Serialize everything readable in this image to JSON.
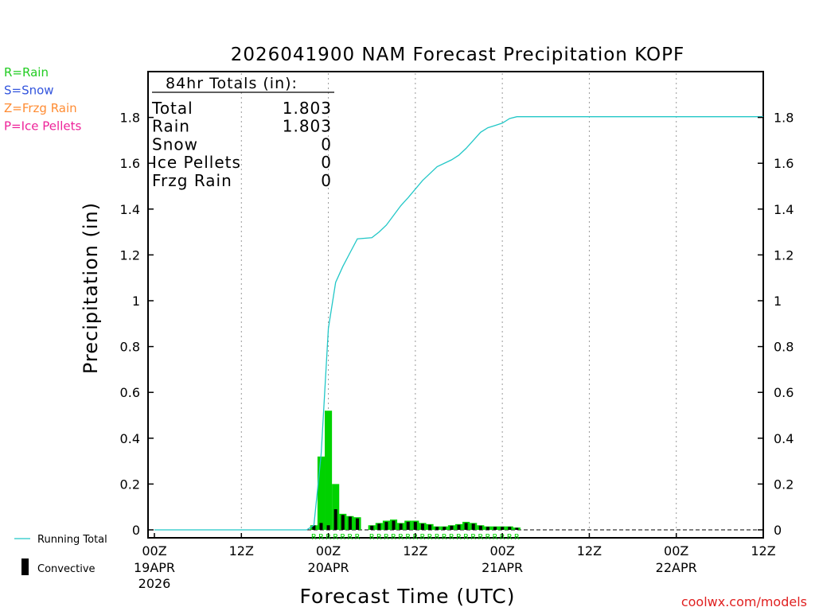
{
  "chart_data": {
    "type": "bar",
    "title": "2026041900 NAM Forecast Precipitation KOPF",
    "xlabel": "Forecast Time (UTC)",
    "ylabel": "Precipitation (in)",
    "ylim": [
      0,
      2.0
    ],
    "xlim_hours": [
      0,
      84
    ],
    "yticks": [
      "0",
      "0.2",
      "0.4",
      "0.6",
      "0.8",
      "1",
      "1.2",
      "1.4",
      "1.6",
      "1.8"
    ],
    "xticks": [
      {
        "hour": 0,
        "label": "00Z",
        "date": "19APR",
        "year": "2026"
      },
      {
        "hour": 12,
        "label": "12Z",
        "date": "",
        "year": ""
      },
      {
        "hour": 24,
        "label": "00Z",
        "date": "20APR",
        "year": ""
      },
      {
        "hour": 36,
        "label": "12Z",
        "date": "",
        "year": ""
      },
      {
        "hour": 48,
        "label": "00Z",
        "date": "21APR",
        "year": ""
      },
      {
        "hour": 60,
        "label": "12Z",
        "date": "",
        "year": ""
      },
      {
        "hour": 72,
        "label": "00Z",
        "date": "22APR",
        "year": ""
      },
      {
        "hour": 84,
        "label": "12Z",
        "date": "",
        "year": ""
      }
    ],
    "legend_ptypes": [
      {
        "label": "R=Rain",
        "color": "#22cc22"
      },
      {
        "label": "S=Snow",
        "color": "#3355dd"
      },
      {
        "label": "Z=Frzg Rain",
        "color": "#ff8c33"
      },
      {
        "label": "P=Ice Pellets",
        "color": "#ee2299"
      }
    ],
    "legend_series": {
      "running_total": "Running Total",
      "convective": "Convective"
    },
    "totals_box": {
      "title": "84hr Totals (in):",
      "rows": [
        {
          "label": "Total",
          "value": "1.803"
        },
        {
          "label": "Rain",
          "value": "1.803"
        },
        {
          "label": "Snow",
          "value": "0"
        },
        {
          "label": "Ice Pellets",
          "value": "0"
        },
        {
          "label": "Frzg Rain",
          "value": "0"
        }
      ]
    },
    "hourly_bars": [
      {
        "hour": 22,
        "total": 0.02,
        "convective": 0.02,
        "ptype": "R"
      },
      {
        "hour": 23,
        "total": 0.32,
        "convective": 0.03,
        "ptype": "R"
      },
      {
        "hour": 24,
        "total": 0.52,
        "convective": 0.02,
        "ptype": "R"
      },
      {
        "hour": 25,
        "total": 0.2,
        "convective": 0.09,
        "ptype": "R"
      },
      {
        "hour": 26,
        "total": 0.07,
        "convective": 0.065,
        "ptype": "R"
      },
      {
        "hour": 27,
        "total": 0.06,
        "convective": 0.058,
        "ptype": "R"
      },
      {
        "hour": 28,
        "total": 0.055,
        "convective": 0.05,
        "ptype": "R"
      },
      {
        "hour": 29,
        "total": 0.0,
        "convective": 0.0,
        "ptype": ""
      },
      {
        "hour": 30,
        "total": 0.02,
        "convective": 0.018,
        "ptype": "R"
      },
      {
        "hour": 31,
        "total": 0.03,
        "convective": 0.027,
        "ptype": "R"
      },
      {
        "hour": 32,
        "total": 0.04,
        "convective": 0.035,
        "ptype": "R"
      },
      {
        "hour": 33,
        "total": 0.045,
        "convective": 0.04,
        "ptype": "R"
      },
      {
        "hour": 34,
        "total": 0.03,
        "convective": 0.027,
        "ptype": "R"
      },
      {
        "hour": 35,
        "total": 0.04,
        "convective": 0.035,
        "ptype": "R"
      },
      {
        "hour": 36,
        "total": 0.04,
        "convective": 0.035,
        "ptype": "R"
      },
      {
        "hour": 37,
        "total": 0.03,
        "convective": 0.027,
        "ptype": "R"
      },
      {
        "hour": 38,
        "total": 0.025,
        "convective": 0.022,
        "ptype": "R"
      },
      {
        "hour": 39,
        "total": 0.015,
        "convective": 0.013,
        "ptype": "R"
      },
      {
        "hour": 40,
        "total": 0.015,
        "convective": 0.013,
        "ptype": "R"
      },
      {
        "hour": 41,
        "total": 0.02,
        "convective": 0.018,
        "ptype": "R"
      },
      {
        "hour": 42,
        "total": 0.025,
        "convective": 0.022,
        "ptype": "R"
      },
      {
        "hour": 43,
        "total": 0.035,
        "convective": 0.03,
        "ptype": "R"
      },
      {
        "hour": 44,
        "total": 0.03,
        "convective": 0.027,
        "ptype": "R"
      },
      {
        "hour": 45,
        "total": 0.02,
        "convective": 0.018,
        "ptype": "R"
      },
      {
        "hour": 46,
        "total": 0.015,
        "convective": 0.013,
        "ptype": "R"
      },
      {
        "hour": 47,
        "total": 0.015,
        "convective": 0.013,
        "ptype": "R"
      },
      {
        "hour": 48,
        "total": 0.015,
        "convective": 0.013,
        "ptype": "R"
      },
      {
        "hour": 49,
        "total": 0.015,
        "convective": 0.013,
        "ptype": "R"
      },
      {
        "hour": 50,
        "total": 0.01,
        "convective": 0.009,
        "ptype": "R"
      }
    ],
    "running_total": [
      [
        0,
        0
      ],
      [
        21,
        0
      ],
      [
        22,
        0.02
      ],
      [
        23,
        0.33
      ],
      [
        24,
        0.88
      ],
      [
        25,
        1.08
      ],
      [
        26,
        1.15
      ],
      [
        27,
        1.21
      ],
      [
        28,
        1.27
      ],
      [
        30,
        1.275
      ],
      [
        31,
        1.3
      ],
      [
        32,
        1.33
      ],
      [
        34,
        1.415
      ],
      [
        35,
        1.45
      ],
      [
        37,
        1.525
      ],
      [
        38,
        1.555
      ],
      [
        39,
        1.585
      ],
      [
        41,
        1.615
      ],
      [
        42,
        1.635
      ],
      [
        43,
        1.665
      ],
      [
        44,
        1.7
      ],
      [
        45,
        1.735
      ],
      [
        46,
        1.755
      ],
      [
        47,
        1.765
      ],
      [
        48,
        1.775
      ],
      [
        49,
        1.795
      ],
      [
        50,
        1.803
      ],
      [
        84,
        1.803
      ]
    ]
  },
  "colors": {
    "rain_bar": "#00d200",
    "convective_bar": "#000000",
    "running_total_line": "#22c7c7",
    "grid": "#999999",
    "credit": "#e02020"
  },
  "credit": "coolwx.com/models"
}
